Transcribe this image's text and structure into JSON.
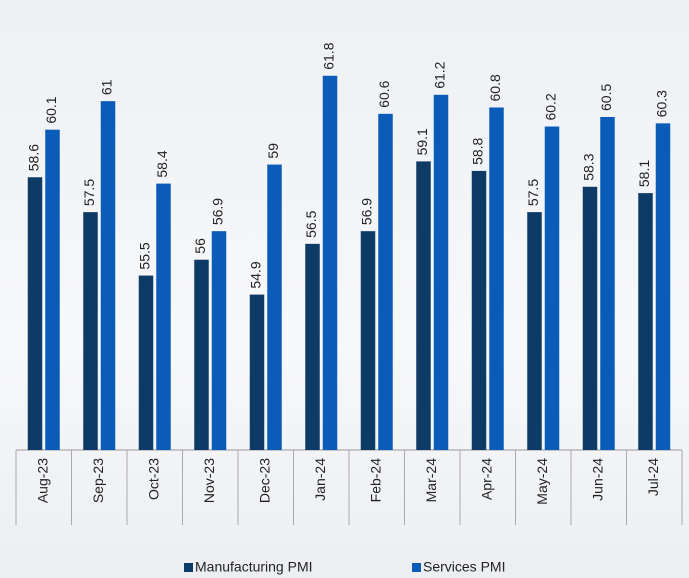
{
  "chart_data": {
    "type": "bar",
    "categories": [
      "Aug-23",
      "Sep-23",
      "Oct-23",
      "Nov-23",
      "Dec-23",
      "Jan-24",
      "Feb-24",
      "Mar-24",
      "Apr-24",
      "May-24",
      "Jun-24",
      "Jul-24"
    ],
    "series": [
      {
        "name": "Manufacturing PMI",
        "color": "#0e3a66",
        "values": [
          58.6,
          57.5,
          55.5,
          56,
          54.9,
          56.5,
          56.9,
          59.1,
          58.8,
          57.5,
          58.3,
          58.1
        ]
      },
      {
        "name": "Services PMI",
        "color": "#0b5cb8",
        "values": [
          60.1,
          61,
          58.4,
          56.9,
          59,
          61.8,
          60.6,
          61.2,
          60.8,
          60.2,
          60.5,
          60.3
        ]
      }
    ],
    "ylim": [
      50,
      64
    ],
    "legend": "bottom"
  }
}
